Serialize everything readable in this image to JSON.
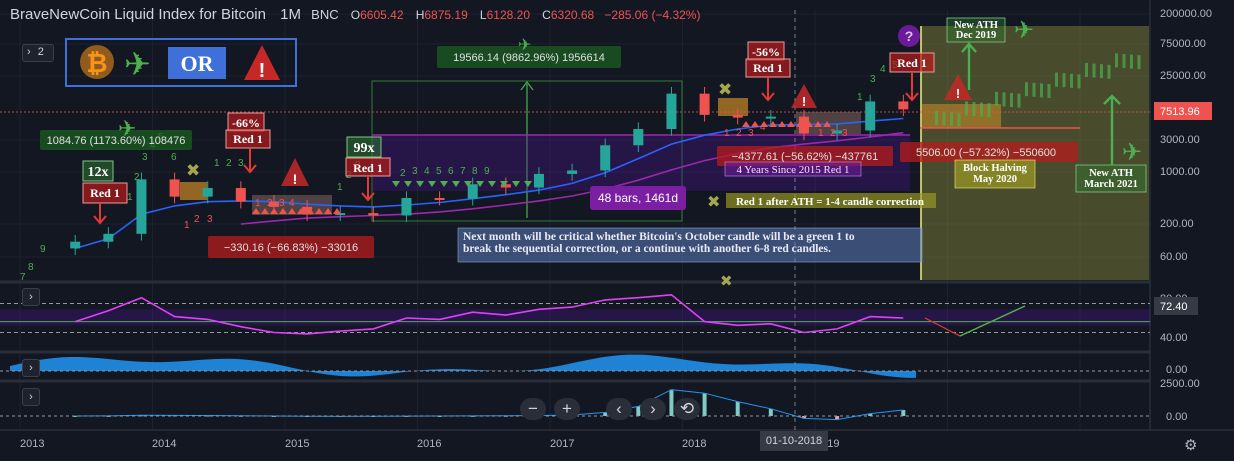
{
  "header": {
    "symbol": "BraveNewCoin Liquid Index for Bitcoin",
    "interval": "1M",
    "exchange": "BNC",
    "open_label": "O",
    "open": "6605.42",
    "high_label": "H",
    "high": "6875.19",
    "low_label": "L",
    "low": "6128.20",
    "close_label": "C",
    "close": "6320.68",
    "change": "−285.06 (−4.32%)",
    "collapse_count": "2"
  },
  "colors": {
    "background": "#131722",
    "up": "#26a69a",
    "down": "#ef5350",
    "rsi_line": "#e040fb",
    "ma_blue": "#2962ff",
    "ma_purple": "#9c27b0",
    "green_count": "#2e7d32",
    "red_count": "#e53935",
    "highlight_zone": "#a5a650"
  },
  "logo": {
    "text": "OR",
    "icons": [
      "bitcoin-icon",
      "airplane-icon",
      "warning-icon"
    ]
  },
  "annotations": {
    "gain_2013": "1084.76 (1173.60%) 108476",
    "gain_2017": "19566.14 (9862.96%) 1956614",
    "drop_2014": "−330.16 (−66.83%) −33016",
    "drop_2018": "−4377.61 (−56.62%) −437761",
    "drop_2019": "5506.00 (−57.32%) −550600",
    "pct_66": "-66%",
    "pct_56": "-56%",
    "red1": "Red 1",
    "x12": "12x",
    "x99": "99x",
    "bars": "48 bars, 1461d",
    "four_years": "4 Years Since 2015 Red 1",
    "after_ath": "Red 1 after ATH = 1-4 candle correction",
    "note": "Next month will be critical whether Bitcoin's October candle will be a green 1 to break the sequential correction, or a continue with another 6-8 red candles.",
    "ath_dec": "New ATH\nDec 2019",
    "halving": "Block Halving\nMay 2020",
    "ath_mar": "New ATH\nMarch 2021"
  },
  "price_axis": {
    "ticks": [
      "200000.00",
      "75000.00",
      "25000.00",
      "7513.96",
      "3000.00",
      "1000.00",
      "200.00",
      "60.00"
    ],
    "last_price": "7513.96"
  },
  "rsi_axis": {
    "ticks": [
      "80.00",
      "72.40",
      "40.00"
    ],
    "current": "72.40"
  },
  "osc_axis": {
    "ticks": [
      "0.00"
    ]
  },
  "macd_axis": {
    "ticks": [
      "2500.00",
      "0.00"
    ]
  },
  "time_axis": {
    "labels": [
      "2013",
      "2014",
      "2015",
      "2016",
      "2017",
      "2018",
      "2019"
    ],
    "crosshair": "01-10-2018"
  },
  "controls": {
    "zoom_out": "−",
    "zoom_in": "+",
    "prev": "‹",
    "next": "›",
    "reset": "⟲",
    "settings": "⚙"
  },
  "chart_data": {
    "type": "candlestick",
    "title": "BraveNewCoin Liquid Index for Bitcoin",
    "interval": "1M",
    "scale": "log",
    "x": [
      "2013-06",
      "2013-09",
      "2013-12",
      "2014-03",
      "2014-06",
      "2014-09",
      "2014-12",
      "2015-03",
      "2015-06",
      "2015-09",
      "2015-12",
      "2016-03",
      "2016-06",
      "2016-09",
      "2016-12",
      "2017-03",
      "2017-06",
      "2017-09",
      "2017-12",
      "2018-03",
      "2018-06",
      "2018-09",
      "2018-12",
      "2019-03",
      "2019-06",
      "2019-09"
    ],
    "close": [
      100,
      130,
      800,
      450,
      600,
      380,
      320,
      250,
      260,
      240,
      430,
      420,
      680,
      610,
      960,
      1080,
      2500,
      4300,
      14000,
      6900,
      6300,
      6500,
      3700,
      4100,
      10800,
      8300
    ],
    "ylim": [
      30,
      200000
    ],
    "xlim": [
      "2013-01",
      "2022-12"
    ],
    "series": [
      {
        "name": "MA blue",
        "values": [
          80,
          110,
          250,
          330,
          380,
          390,
          380,
          350,
          330,
          320,
          340,
          370,
          420,
          480,
          560,
          700,
          1000,
          1600,
          2600,
          3500,
          4300,
          4900,
          5000,
          5100,
          5600,
          6100
        ]
      },
      {
        "name": "MA purple",
        "values": [
          null,
          null,
          null,
          null,
          null,
          180,
          200,
          220,
          230,
          240,
          250,
          270,
          300,
          340,
          390,
          460,
          580,
          780,
          1100,
          1500,
          1900,
          2300,
          2600,
          2900,
          3300,
          3800
        ]
      }
    ],
    "rsi": [
      55,
      70,
      88,
      62,
      58,
      48,
      40,
      38,
      42,
      45,
      60,
      58,
      68,
      64,
      72,
      75,
      85,
      88,
      92,
      55,
      50,
      52,
      40,
      45,
      62,
      60
    ],
    "macd": [
      0,
      10,
      60,
      50,
      40,
      20,
      0,
      -20,
      -30,
      -25,
      -10,
      0,
      10,
      20,
      40,
      80,
      300,
      800,
      2200,
      1900,
      1200,
      600,
      -200,
      -300,
      200,
      500
    ]
  }
}
